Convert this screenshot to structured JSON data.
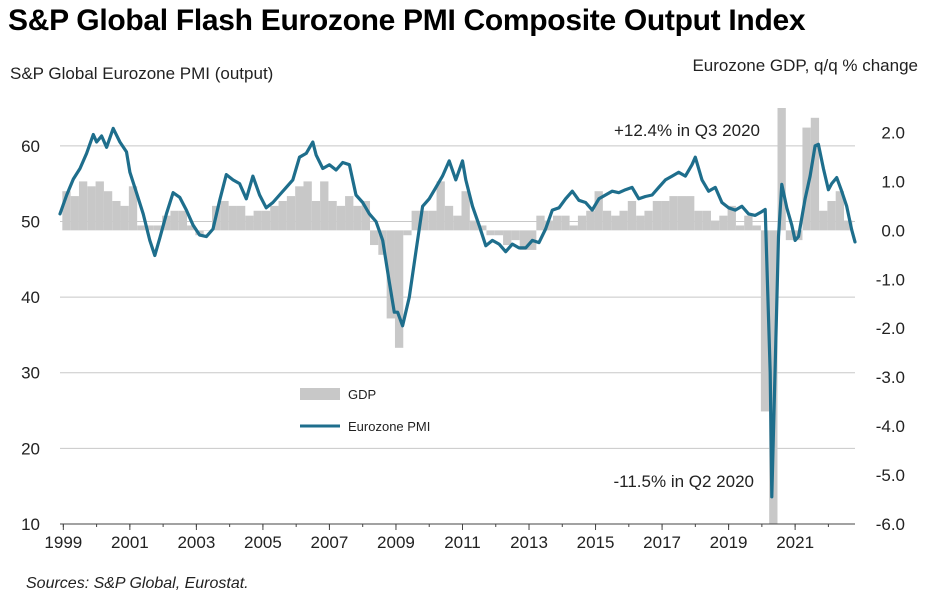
{
  "title": "S&P Global Flash Eurozone PMI Composite Output Index",
  "source": "Sources: S&P Global, Eurostat.",
  "chart_data": {
    "type": "bar+line",
    "left_axis_title": "S&P Global  Eurozone PMI (output)",
    "right_axis_title": "Eurozone GDP, q/q % change",
    "left_ylim": [
      10,
      65
    ],
    "left_ticks": [
      "60",
      "50",
      "40",
      "30",
      "20",
      "10"
    ],
    "left_tick_values": [
      60,
      50,
      40,
      30,
      20,
      10
    ],
    "right_ylim": [
      -6.0,
      2.5
    ],
    "right_ticks": [
      "2.0",
      "1.0",
      "0.0",
      "-1.0",
      "-2.0",
      "-3.0",
      "-4.0",
      "-5.0",
      "-6.0"
    ],
    "right_tick_values": [
      2.0,
      1.0,
      0.0,
      -1.0,
      -2.0,
      -3.0,
      -4.0,
      -5.0,
      -6.0
    ],
    "x_range": [
      1998.9,
      2022.8
    ],
    "x_ticks": [
      "1999",
      "2001",
      "2003",
      "2005",
      "2007",
      "2009",
      "2011",
      "2013",
      "2015",
      "2017",
      "2019",
      "2021"
    ],
    "x_tick_values": [
      1999,
      2001,
      2003,
      2005,
      2007,
      2009,
      2011,
      2013,
      2015,
      2017,
      2019,
      2021
    ],
    "grid": true,
    "legend_position": "inside-left",
    "colors": {
      "gdp": "#c8c8c8",
      "pmi": "#1e6e8c",
      "grid": "#c8c8c8"
    },
    "annotations": [
      {
        "text": "+12.4% in Q3 2020",
        "x": 2020.5,
        "y_gdp": 2.5
      },
      {
        "text": "-11.5% in Q2 2020",
        "x": 2020.25,
        "y_gdp": -6.0
      }
    ],
    "series": [
      {
        "name": "GDP",
        "axis": "right",
        "kind": "bar",
        "x": [
          1999.0,
          1999.25,
          1999.5,
          1999.75,
          2000.0,
          2000.25,
          2000.5,
          2000.75,
          2001.0,
          2001.25,
          2001.5,
          2001.75,
          2002.0,
          2002.25,
          2002.5,
          2002.75,
          2003.0,
          2003.25,
          2003.5,
          2003.75,
          2004.0,
          2004.25,
          2004.5,
          2004.75,
          2005.0,
          2005.25,
          2005.5,
          2005.75,
          2006.0,
          2006.25,
          2006.5,
          2006.75,
          2007.0,
          2007.25,
          2007.5,
          2007.75,
          2008.0,
          2008.25,
          2008.5,
          2008.75,
          2009.0,
          2009.25,
          2009.5,
          2009.75,
          2010.0,
          2010.25,
          2010.5,
          2010.75,
          2011.0,
          2011.25,
          2011.5,
          2011.75,
          2012.0,
          2012.25,
          2012.5,
          2012.75,
          2013.0,
          2013.25,
          2013.5,
          2013.75,
          2014.0,
          2014.25,
          2014.5,
          2014.75,
          2015.0,
          2015.25,
          2015.5,
          2015.75,
          2016.0,
          2016.25,
          2016.5,
          2016.75,
          2017.0,
          2017.25,
          2017.5,
          2017.75,
          2018.0,
          2018.25,
          2018.5,
          2018.75,
          2019.0,
          2019.25,
          2019.5,
          2019.75,
          2020.0,
          2020.25,
          2020.5,
          2020.75,
          2021.0,
          2021.25,
          2021.5,
          2021.75,
          2022.0,
          2022.25,
          2022.5
        ],
        "values": [
          0.8,
          0.7,
          1.0,
          0.9,
          1.0,
          0.8,
          0.6,
          0.5,
          0.9,
          0.1,
          0.1,
          0.1,
          0.3,
          0.4,
          0.4,
          0.1,
          -0.1,
          0.0,
          0.5,
          0.6,
          0.5,
          0.5,
          0.3,
          0.4,
          0.4,
          0.5,
          0.6,
          0.7,
          0.9,
          1.0,
          0.6,
          1.0,
          0.6,
          0.5,
          0.7,
          0.5,
          0.6,
          -0.3,
          -0.5,
          -1.8,
          -2.4,
          -0.1,
          0.4,
          0.4,
          0.4,
          1.0,
          0.5,
          0.3,
          0.8,
          0.2,
          0.1,
          -0.1,
          -0.1,
          -0.3,
          -0.2,
          -0.4,
          -0.4,
          0.3,
          0.2,
          0.3,
          0.3,
          0.1,
          0.3,
          0.4,
          0.8,
          0.4,
          0.3,
          0.4,
          0.6,
          0.3,
          0.4,
          0.6,
          0.6,
          0.7,
          0.7,
          0.7,
          0.4,
          0.4,
          0.2,
          0.3,
          0.5,
          0.1,
          0.3,
          0.1,
          -3.7,
          -11.5,
          12.4,
          -0.2,
          -0.2,
          2.1,
          2.3,
          0.4,
          0.6,
          0.8,
          0.2
        ]
      },
      {
        "name": "Eurozone PMI",
        "axis": "left",
        "kind": "line",
        "x": [
          1998.9,
          1999.1,
          1999.3,
          1999.5,
          1999.7,
          1999.9,
          2000.0,
          2000.15,
          2000.3,
          2000.5,
          2000.7,
          2000.9,
          2001.0,
          2001.2,
          2001.4,
          2001.6,
          2001.75,
          2001.9,
          2002.1,
          2002.3,
          2002.5,
          2002.7,
          2002.9,
          2003.1,
          2003.3,
          2003.5,
          2003.7,
          2003.9,
          2004.1,
          2004.3,
          2004.5,
          2004.7,
          2004.9,
          2005.1,
          2005.3,
          2005.5,
          2005.7,
          2005.9,
          2006.1,
          2006.3,
          2006.5,
          2006.6,
          2006.8,
          2007.0,
          2007.2,
          2007.4,
          2007.6,
          2007.8,
          2008.0,
          2008.2,
          2008.4,
          2008.6,
          2008.8,
          2008.95,
          2009.05,
          2009.2,
          2009.4,
          2009.6,
          2009.8,
          2010.0,
          2010.2,
          2010.4,
          2010.6,
          2010.8,
          2011.0,
          2011.1,
          2011.3,
          2011.5,
          2011.7,
          2011.9,
          2012.1,
          2012.3,
          2012.5,
          2012.7,
          2012.9,
          2013.1,
          2013.3,
          2013.5,
          2013.7,
          2013.9,
          2014.1,
          2014.3,
          2014.5,
          2014.7,
          2014.9,
          2015.1,
          2015.3,
          2015.5,
          2015.7,
          2015.9,
          2016.1,
          2016.3,
          2016.5,
          2016.7,
          2016.9,
          2017.1,
          2017.3,
          2017.5,
          2017.7,
          2017.9,
          2018.0,
          2018.2,
          2018.4,
          2018.6,
          2018.8,
          2019.0,
          2019.2,
          2019.4,
          2019.6,
          2019.8,
          2020.0,
          2020.1,
          2020.25,
          2020.3,
          2020.4,
          2020.5,
          2020.6,
          2020.75,
          2020.9,
          2021.0,
          2021.1,
          2021.3,
          2021.45,
          2021.6,
          2021.7,
          2021.85,
          2022.0,
          2022.1,
          2022.25,
          2022.4,
          2022.55,
          2022.7,
          2022.8
        ],
        "values": [
          51.0,
          53.5,
          55.6,
          57.0,
          59.0,
          61.5,
          60.5,
          61.3,
          59.8,
          62.3,
          60.5,
          59.2,
          56.5,
          53.8,
          51.0,
          47.5,
          45.5,
          47.8,
          51.0,
          53.8,
          53.2,
          51.5,
          49.5,
          48.2,
          48.0,
          49.0,
          52.8,
          56.2,
          55.5,
          55.0,
          53.0,
          56.0,
          53.5,
          51.8,
          52.5,
          53.5,
          54.5,
          55.5,
          58.5,
          59.0,
          60.5,
          58.8,
          57.0,
          57.5,
          56.8,
          57.8,
          57.5,
          53.5,
          52.5,
          51.0,
          50.0,
          47.5,
          42.0,
          38.0,
          38.0,
          36.2,
          40.0,
          46.0,
          52.0,
          53.0,
          54.5,
          56.0,
          58.0,
          55.5,
          58.0,
          55.5,
          52.0,
          49.5,
          46.8,
          47.5,
          47.0,
          46.0,
          47.0,
          46.5,
          46.5,
          47.5,
          47.2,
          49.0,
          51.5,
          51.8,
          53.0,
          54.0,
          52.8,
          52.5,
          51.5,
          53.0,
          53.5,
          54.0,
          53.8,
          54.2,
          54.5,
          53.0,
          53.3,
          53.5,
          54.5,
          55.5,
          56.0,
          56.5,
          56.0,
          57.5,
          58.5,
          55.5,
          54.0,
          54.5,
          52.5,
          51.8,
          51.5,
          52.0,
          51.0,
          50.8,
          51.3,
          51.6,
          30.0,
          13.6,
          31.0,
          48.0,
          54.9,
          51.8,
          49.5,
          47.5,
          48.0,
          53.0,
          56.0,
          60.0,
          60.2,
          57.0,
          54.2,
          55.0,
          55.8,
          54.0,
          52.0,
          48.9,
          47.3
        ]
      }
    ]
  }
}
